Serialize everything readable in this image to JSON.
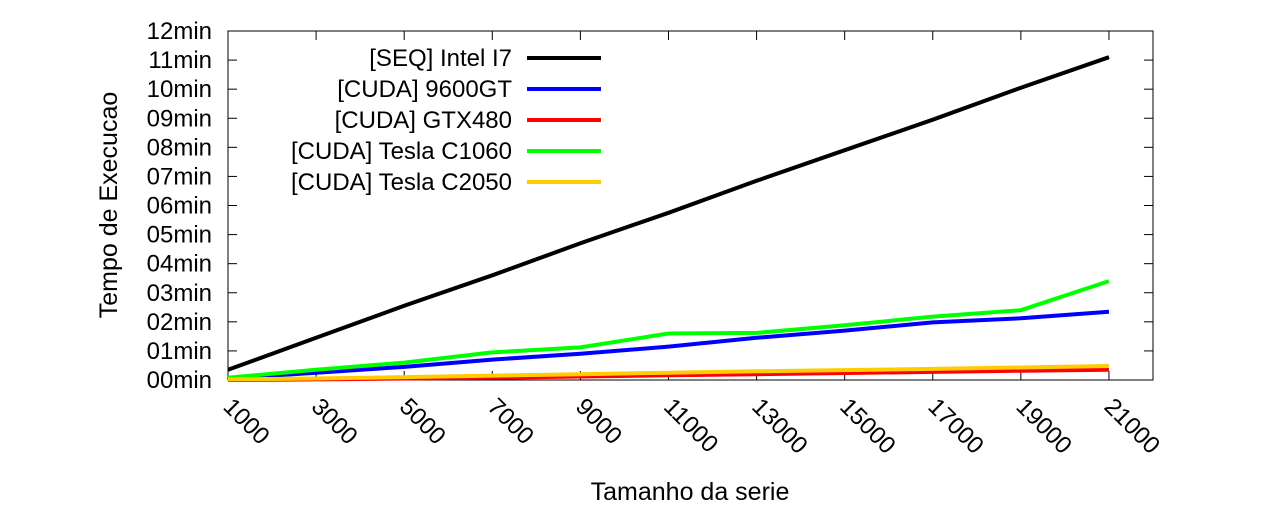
{
  "chart_data": {
    "type": "line",
    "title": "",
    "xlabel": "Tamanho da serie",
    "ylabel": "Tempo de Execucao",
    "x": [
      1000,
      3000,
      5000,
      7000,
      9000,
      11000,
      13000,
      15000,
      17000,
      19000,
      21000
    ],
    "xticks": [
      "1000",
      "3000",
      "5000",
      "7000",
      "9000",
      "11000",
      "13000",
      "15000",
      "17000",
      "19000",
      "21000"
    ],
    "xlim": [
      1000,
      22000
    ],
    "ylim": [
      0,
      12
    ],
    "y_unit": "min",
    "yticks": [
      "00min",
      "01min",
      "02min",
      "03min",
      "04min",
      "05min",
      "06min",
      "07min",
      "08min",
      "09min",
      "10min",
      "11min",
      "12min"
    ],
    "grid": false,
    "legend_position": "top-left",
    "series": [
      {
        "name": "[SEQ] Intel I7",
        "color": "#000000",
        "values": [
          0.35,
          1.45,
          2.55,
          3.6,
          4.7,
          5.75,
          6.85,
          7.9,
          8.95,
          10.05,
          11.1
        ]
      },
      {
        "name": "[CUDA] 9600GT",
        "color": "#0000ff",
        "values": [
          0.05,
          0.25,
          0.45,
          0.7,
          0.9,
          1.15,
          1.45,
          1.7,
          1.98,
          2.12,
          2.35
        ]
      },
      {
        "name": "[CUDA] GTX480",
        "color": "#ff0000",
        "values": [
          0.0,
          0.02,
          0.05,
          0.08,
          0.12,
          0.16,
          0.2,
          0.24,
          0.28,
          0.32,
          0.35
        ]
      },
      {
        "name": "[CUDA] Tesla C1060",
        "color": "#00ff00",
        "values": [
          0.08,
          0.35,
          0.6,
          0.95,
          1.12,
          1.6,
          1.62,
          1.88,
          2.18,
          2.4,
          3.4
        ]
      },
      {
        "name": "[CUDA] Tesla C2050",
        "color": "#ffcc00",
        "values": [
          0.02,
          0.05,
          0.1,
          0.15,
          0.2,
          0.25,
          0.3,
          0.34,
          0.38,
          0.43,
          0.48
        ]
      }
    ]
  }
}
